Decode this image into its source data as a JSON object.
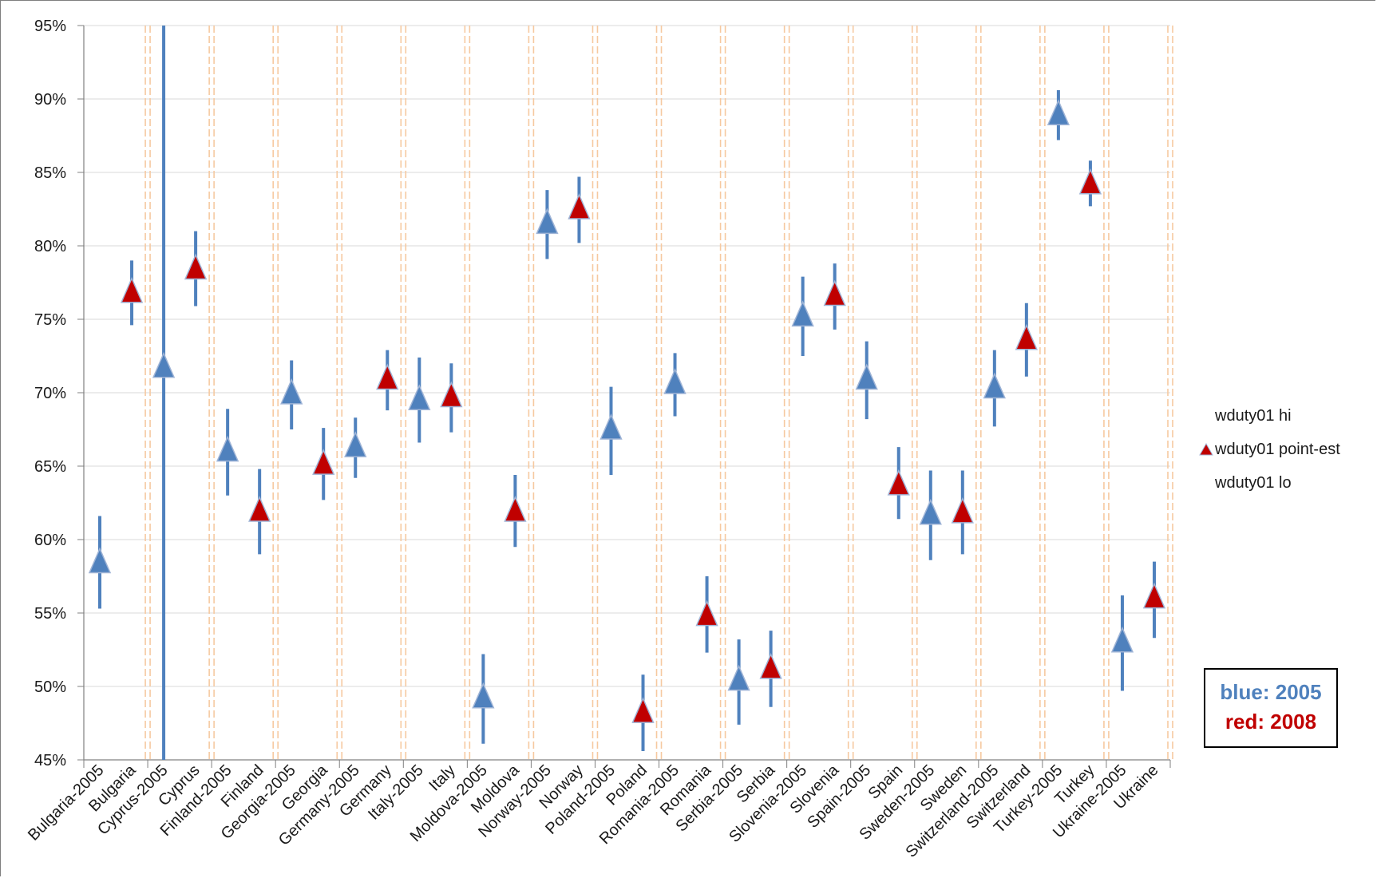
{
  "chart_data": {
    "type": "scatter",
    "title": "",
    "xlabel": "",
    "ylabel": "",
    "ylim": [
      45,
      95
    ],
    "y_ticks": [
      "45%",
      "50%",
      "55%",
      "60%",
      "65%",
      "70%",
      "75%",
      "80%",
      "85%",
      "90%",
      "95%"
    ],
    "grid": "horizontal",
    "legend_position": "right",
    "colors": {
      "2005": "#4f81bd",
      "2008": "#c00000",
      "separator": "#f6c9a0"
    },
    "categories": [
      "Bulgaria-2005",
      "Bulgaria",
      "Cyprus-2005",
      "Cyprus",
      "Finland-2005",
      "Finland",
      "Georgia-2005",
      "Georgia",
      "Germany-2005",
      "Germany",
      "Italy-2005",
      "Italy",
      "Moldova-2005",
      "Moldova",
      "Norway-2005",
      "Norway",
      "Poland-2005",
      "Poland",
      "Romania-2005",
      "Romania",
      "Serbia-2005",
      "Serbia",
      "Slovenia-2005",
      "Slovenia",
      "Spain-2005",
      "Spain",
      "Sweden-2005",
      "Sweden",
      "Switzerland-2005",
      "Switzerland",
      "Turkey-2005",
      "Turkey",
      "Ukraine-2005",
      "Ukraine"
    ],
    "series": [
      {
        "name": "wduty01 hi",
        "values": [
          61.6,
          79.0,
          95.0,
          81.0,
          68.9,
          64.8,
          72.2,
          67.6,
          68.3,
          72.9,
          72.4,
          72.0,
          52.2,
          64.4,
          83.8,
          84.7,
          70.4,
          50.8,
          72.7,
          57.5,
          53.2,
          53.8,
          77.9,
          78.8,
          73.5,
          66.3,
          64.7,
          64.7,
          72.9,
          76.1,
          90.6,
          85.8,
          56.2,
          58.5
        ]
      },
      {
        "name": "wduty01 point-est",
        "values": [
          58.4,
          76.8,
          71.7,
          78.4,
          66.0,
          61.9,
          69.9,
          65.1,
          66.3,
          70.9,
          69.5,
          69.7,
          49.2,
          61.9,
          81.5,
          82.5,
          67.5,
          48.2,
          70.6,
          54.8,
          50.4,
          51.2,
          75.2,
          76.6,
          70.9,
          63.7,
          61.7,
          61.8,
          70.3,
          73.6,
          88.9,
          84.2,
          53.0,
          56.0
        ]
      },
      {
        "name": "wduty01 lo",
        "values": [
          55.3,
          74.6,
          45.0,
          75.9,
          63.0,
          59.0,
          67.5,
          62.7,
          64.2,
          68.8,
          66.6,
          67.3,
          46.1,
          59.5,
          79.1,
          80.2,
          64.4,
          45.6,
          68.4,
          52.3,
          47.4,
          48.6,
          72.5,
          74.3,
          68.2,
          61.4,
          58.6,
          59.0,
          67.7,
          71.1,
          87.2,
          82.7,
          49.7,
          53.3
        ]
      }
    ]
  },
  "legend": [
    {
      "label": "wduty01 hi",
      "marker": "none"
    },
    {
      "label": "wduty01 point-est",
      "marker": "red-triangle-icon"
    },
    {
      "label": "wduty01 lo",
      "marker": "none"
    }
  ],
  "note": {
    "blue_label": "blue: 2005",
    "red_label": "red: 2008"
  }
}
